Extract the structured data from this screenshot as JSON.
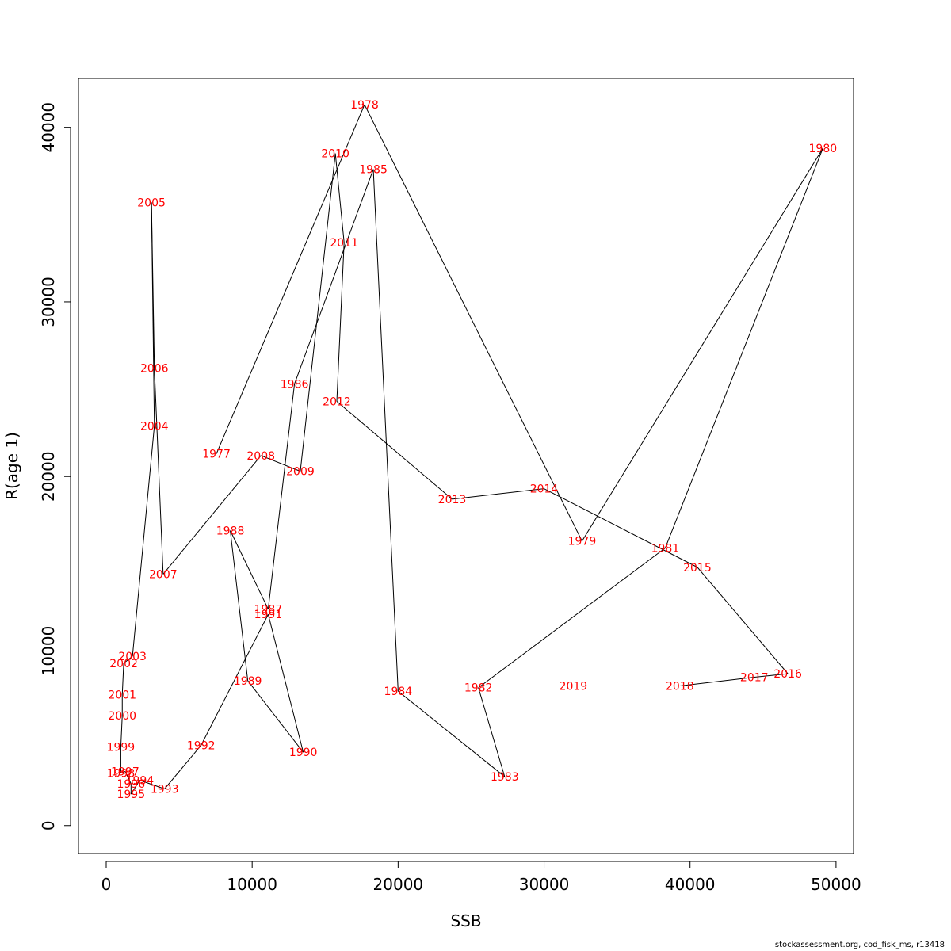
{
  "chart_data": {
    "type": "scatter",
    "xlabel": "SSB",
    "ylabel": "R(age 1)",
    "xlim": [
      -1900,
      51200
    ],
    "ylim": [
      -1600,
      42800
    ],
    "xticks": [
      0,
      10000,
      20000,
      30000,
      40000,
      50000
    ],
    "yticks": [
      0,
      10000,
      20000,
      30000,
      40000
    ],
    "xtick_labels": [
      "0",
      "10000",
      "20000",
      "30000",
      "40000",
      "50000"
    ],
    "ytick_labels": [
      "0",
      "10000",
      "20000",
      "30000",
      "40000"
    ],
    "connected": true,
    "line_color": "#000000",
    "label_color": "#ff0000",
    "points": [
      {
        "label": "1977",
        "x": 7550,
        "y": 21300
      },
      {
        "label": "1978",
        "x": 17700,
        "y": 41300
      },
      {
        "label": "1979",
        "x": 32600,
        "y": 16300
      },
      {
        "label": "1980",
        "x": 49100,
        "y": 38800
      },
      {
        "label": "1981",
        "x": 38300,
        "y": 15900
      },
      {
        "label": "1982",
        "x": 25500,
        "y": 7900
      },
      {
        "label": "1983",
        "x": 27300,
        "y": 2800
      },
      {
        "label": "1984",
        "x": 20000,
        "y": 7700
      },
      {
        "label": "1985",
        "x": 18300,
        "y": 37600
      },
      {
        "label": "1986",
        "x": 12900,
        "y": 25300
      },
      {
        "label": "1987",
        "x": 11100,
        "y": 12400
      },
      {
        "label": "1988",
        "x": 8500,
        "y": 16900
      },
      {
        "label": "1989",
        "x": 9700,
        "y": 8300
      },
      {
        "label": "1990",
        "x": 13500,
        "y": 4200
      },
      {
        "label": "1991",
        "x": 11100,
        "y": 12100
      },
      {
        "label": "1992",
        "x": 6500,
        "y": 4600
      },
      {
        "label": "1993",
        "x": 4000,
        "y": 2100
      },
      {
        "label": "1994",
        "x": 2300,
        "y": 2600
      },
      {
        "label": "1995",
        "x": 1700,
        "y": 1800
      },
      {
        "label": "1996",
        "x": 1700,
        "y": 2400
      },
      {
        "label": "1997",
        "x": 1300,
        "y": 3100
      },
      {
        "label": "1998",
        "x": 1000,
        "y": 3000
      },
      {
        "label": "1999",
        "x": 1000,
        "y": 4500
      },
      {
        "label": "2000",
        "x": 1100,
        "y": 6300
      },
      {
        "label": "2001",
        "x": 1100,
        "y": 7500
      },
      {
        "label": "2002",
        "x": 1200,
        "y": 9300
      },
      {
        "label": "2003",
        "x": 1800,
        "y": 9700
      },
      {
        "label": "2004",
        "x": 3300,
        "y": 22900
      },
      {
        "label": "2005",
        "x": 3100,
        "y": 35700
      },
      {
        "label": "2006",
        "x": 3300,
        "y": 26200
      },
      {
        "label": "2007",
        "x": 3900,
        "y": 14400
      },
      {
        "label": "2008",
        "x": 10600,
        "y": 21200
      },
      {
        "label": "2009",
        "x": 13300,
        "y": 20300
      },
      {
        "label": "2010",
        "x": 15700,
        "y": 38500
      },
      {
        "label": "2011",
        "x": 16300,
        "y": 33400
      },
      {
        "label": "2012",
        "x": 15800,
        "y": 24300
      },
      {
        "label": "2013",
        "x": 23700,
        "y": 18700
      },
      {
        "label": "2014",
        "x": 30000,
        "y": 19300
      },
      {
        "label": "2015",
        "x": 40500,
        "y": 14800
      },
      {
        "label": "2016",
        "x": 46700,
        "y": 8700
      },
      {
        "label": "2017",
        "x": 44400,
        "y": 8500
      },
      {
        "label": "2018",
        "x": 39300,
        "y": 8000
      },
      {
        "label": "2019",
        "x": 32000,
        "y": 8000
      }
    ]
  },
  "footer": "stockassessment.org, cod_fisk_ms, r13418"
}
